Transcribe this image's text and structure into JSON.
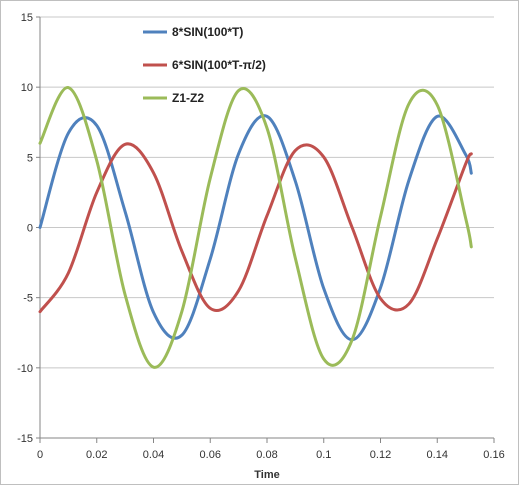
{
  "chart_data": {
    "type": "line",
    "title": "",
    "xlabel": "Time",
    "ylabel": "",
    "xlim": [
      0,
      0.16
    ],
    "ylim": [
      -15,
      15
    ],
    "x_ticks": [
      "0",
      "0.02",
      "0.04",
      "0.06",
      "0.08",
      "0.1",
      "0.12",
      "0.14",
      "0.16"
    ],
    "y_ticks": [
      "15",
      "10",
      "5",
      "0",
      "-5",
      "-10",
      "-15"
    ],
    "x_tick_values": [
      0,
      0.02,
      0.04,
      0.06,
      0.08,
      0.1,
      0.12,
      0.14,
      0.16
    ],
    "y_tick_values": [
      15,
      10,
      5,
      0,
      -5,
      -10,
      -15
    ],
    "grid": "horizontal",
    "legend_position": "top-center",
    "x": [
      0,
      0.01,
      0.02,
      0.03,
      0.04,
      0.05,
      0.06,
      0.07,
      0.08,
      0.09,
      0.1,
      0.11,
      0.12,
      0.13,
      0.14,
      0.15,
      0.152
    ],
    "series": [
      {
        "name": "8*SIN(100*T)",
        "color": "#4F81BD",
        "values": [
          0,
          6.73,
          7.27,
          1.13,
          -6.05,
          -7.67,
          -2.24,
          5.26,
          7.92,
          3.29,
          -4.35,
          -8.0,
          -4.29,
          3.36,
          7.92,
          5.2,
          3.87
        ]
      },
      {
        "name": "6*SIN(100*T-π/2)",
        "color": "#C0504D",
        "values": [
          -6.0,
          -3.24,
          2.5,
          5.93,
          3.9,
          -1.69,
          -5.76,
          -4.5,
          0.84,
          5.49,
          5.02,
          0.0,
          -5.06,
          -5.45,
          -0.81,
          4.53,
          5.25
        ]
      },
      {
        "name": "Z1-Z2",
        "color": "#9BBB59",
        "values": [
          6.0,
          9.97,
          4.77,
          -4.8,
          -9.95,
          -5.98,
          3.52,
          9.76,
          7.08,
          -2.2,
          -9.37,
          -8.0,
          0.77,
          8.81,
          8.73,
          0.67,
          -1.38
        ]
      }
    ]
  }
}
